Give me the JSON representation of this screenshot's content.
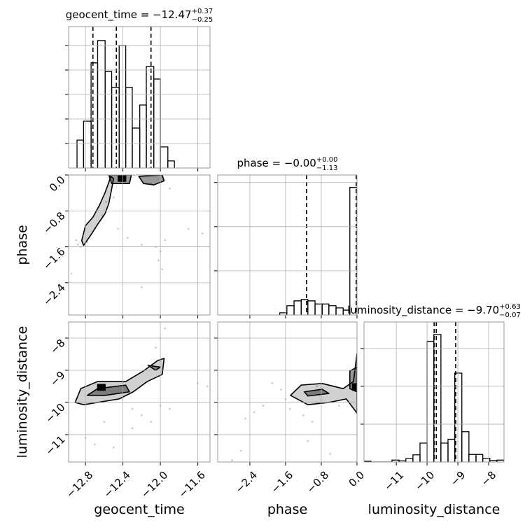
{
  "chart_data": [
    {
      "type": "histogram",
      "title": {
        "text": "geocent_time = −12.47",
        "plus": "+0.37",
        "minus": "−0.25"
      },
      "bins": [
        -12.89,
        -12.82,
        -12.74,
        -12.67,
        -12.59,
        -12.52,
        -12.44,
        -12.37,
        -12.3,
        -12.22,
        -12.15,
        -12.07,
        -12.0,
        -11.92,
        -11.85
      ],
      "values": [
        1.14,
        1.91,
        4.29,
        5.2,
        3.94,
        3.29,
        5.0,
        3.29,
        1.63,
        2.57,
        4.14,
        3.63,
        0.86,
        0.29
      ],
      "quantiles": [
        -12.72,
        -12.47,
        -12.1
      ],
      "xlim": [
        -12.98,
        -11.47
      ],
      "ylim": [
        0,
        5.77
      ],
      "xticks": [
        {
          "value": -12.8,
          "label": "−12.8"
        },
        {
          "value": -12.4,
          "label": "−12.4"
        },
        {
          "value": -12.0,
          "label": "−12.0"
        },
        {
          "value": -11.6,
          "label": "−11.6"
        }
      ],
      "yticks": [
        1,
        2,
        3,
        4,
        5
      ],
      "grid": true
    },
    {
      "type": "histogram",
      "title": {
        "text": "phase = −0.00",
        "plus": "+0.00",
        "minus": "−1.13"
      },
      "bins": [
        -1.73,
        -1.57,
        -1.41,
        -1.25,
        -1.1,
        -0.94,
        -0.78,
        -0.63,
        -0.47,
        -0.31,
        -0.16,
        0
      ],
      "values": [
        0.05,
        0.21,
        0.32,
        0.35,
        0.32,
        0.25,
        0.25,
        0.21,
        0.16,
        0.11,
        2.89
      ],
      "quantiles": [
        -1.13,
        0,
        0
      ],
      "xlim": [
        -3.12,
        0
      ],
      "ylim": [
        0,
        3.17
      ],
      "xticks": [
        {
          "value": -2.4,
          "label": "−2.4"
        },
        {
          "value": -1.6,
          "label": "−1.6"
        },
        {
          "value": -0.8,
          "label": "−0.8"
        },
        {
          "value": 0,
          "label": "0.0"
        }
      ],
      "yticks": [
        1,
        2,
        3
      ],
      "grid": true
    },
    {
      "type": "histogram",
      "title": {
        "text": "luminosity_distance = −9.70",
        "plus": "+0.63",
        "minus": "−0.07"
      },
      "x_label": "luminosity_distance",
      "bins": [
        -12.05,
        -11.82,
        -11.6,
        -11.37,
        -11.14,
        -10.91,
        -10.69,
        -10.46,
        -10.23,
        -10.0,
        -9.78,
        -9.55,
        -9.32,
        -9.1,
        -8.87,
        -8.64,
        -8.41,
        -8.19,
        -7.96,
        -7.73,
        -7.5
      ],
      "values": [
        0.02,
        0,
        0,
        0,
        0.05,
        0.03,
        0.09,
        0.19,
        0.5,
        3.19,
        3.37,
        0.5,
        0.6,
        2.35,
        0.8,
        0.2,
        0.2,
        0.1,
        0.04,
        0.05
      ],
      "quantiles": [
        -9.77,
        -9.7,
        -9.07
      ],
      "xlim": [
        -12.05,
        -7.5
      ],
      "ylim": [
        0,
        3.7
      ],
      "xticks": [
        {
          "value": -11,
          "label": "−11"
        },
        {
          "value": -10,
          "label": "−10"
        },
        {
          "value": -9,
          "label": "−9"
        },
        {
          "value": -8,
          "label": "−8"
        }
      ],
      "yticks": [
        1,
        2,
        3
      ],
      "grid": true
    },
    {
      "type": "scatter",
      "y_label": "phase",
      "x": [
        -12.9,
        -12.88,
        -12.85,
        -12.78,
        -12.7,
        -12.62,
        -12.58,
        -12.5,
        -12.45,
        -12.35,
        -12.2,
        -12.05,
        -12.0,
        -12.02,
        -11.98,
        -12.1,
        -11.9,
        -11.7,
        -11.55,
        -12.95,
        -12.2,
        -11.95
      ],
      "y": [
        -1.45,
        -1.55,
        -1.6,
        -1.5,
        -1.2,
        -0.9,
        -0.6,
        -0.5,
        -1.2,
        -1.4,
        -1.55,
        -1.6,
        -1.7,
        -1.9,
        -2.1,
        -0.2,
        -0.3,
        -1.2,
        -1.3,
        -2.2,
        -2.5,
        -1.45
      ],
      "contours": [
        {
          "x": [
            -12.84,
            -12.8,
            -12.72,
            -12.65,
            -12.59,
            -12.55,
            -12.53,
            -12.5,
            -12.52,
            -12.55,
            -12.59,
            -12.67,
            -12.74,
            -12.82
          ],
          "y": [
            -1.46,
            -1.13,
            -0.94,
            -0.67,
            -0.39,
            -0.16,
            -0.03,
            -0.08,
            -0.31,
            -0.63,
            -0.86,
            -1.1,
            -1.33,
            -1.57
          ]
        },
        {
          "x": [
            -12.23,
            -12.18,
            -12.07,
            -11.96,
            -11.98
          ],
          "y": [
            -0.03,
            -0.19,
            -0.22,
            -0.13,
            0
          ]
        },
        {
          "x": [
            -12.55,
            -12.52,
            -12.33,
            -12.31
          ],
          "y": [
            0,
            -0.19,
            -0.19,
            0
          ]
        },
        {
          "x": [
            -12.45,
            -12.45,
            -12.37,
            -12.37
          ],
          "y": [
            0,
            -0.14,
            -0.14,
            0
          ]
        }
      ],
      "xlim": [
        -12.98,
        -11.47
      ],
      "ylim": [
        -3.12,
        0
      ],
      "xticks": [
        {
          "value": -12.8,
          "label": "−12.8"
        },
        {
          "value": -12.4,
          "label": "−12.4"
        },
        {
          "value": -12.0,
          "label": "−12.0"
        },
        {
          "value": -11.6,
          "label": "−11.6"
        }
      ],
      "yticks": [
        {
          "value": -2.4,
          "label": "−2.4"
        },
        {
          "value": -1.6,
          "label": "−1.6"
        },
        {
          "value": -0.8,
          "label": "−0.8"
        },
        {
          "value": 0,
          "label": "0.0"
        }
      ],
      "grid": true
    },
    {
      "type": "scatter",
      "x_label": "geocent_time",
      "y_label": "luminosity_distance",
      "x": [
        -12.0,
        -11.95,
        -12.05,
        -12.3,
        -12.2,
        -12.1,
        -12.3,
        -12.6,
        -12.8,
        -12.7,
        -12.5,
        -11.6,
        -11.5,
        -12.9,
        -12.4,
        -12.0,
        -11.9
      ],
      "y": [
        -8.0,
        -7.7,
        -8.3,
        -10.2,
        -10.4,
        -10.6,
        -10.8,
        -10.6,
        -11.1,
        -11.3,
        -11.4,
        -9.4,
        -9.5,
        -9.9,
        -9.5,
        -10.1,
        -10.2
      ],
      "contours": [
        {
          "x": [
            -12.91,
            -12.85,
            -12.67,
            -12.37,
            -12.18,
            -12.03,
            -11.96,
            -11.98,
            -12.14,
            -12.29,
            -12.44,
            -12.67,
            -12.82
          ],
          "y": [
            -10.0,
            -9.57,
            -9.35,
            -9.35,
            -9.02,
            -8.7,
            -8.63,
            -9.13,
            -9.35,
            -9.67,
            -9.89,
            -10.0,
            -10.07
          ]
        },
        {
          "x": [
            -12.78,
            -12.67,
            -12.37,
            -12.33,
            -12.59
          ],
          "y": [
            -9.78,
            -9.57,
            -9.46,
            -9.67,
            -9.78
          ]
        },
        {
          "x": [
            -12.13,
            -12.0,
            -12.05
          ],
          "y": [
            -8.85,
            -8.9,
            -9.0
          ]
        },
        {
          "x": [
            -12.67,
            -12.67,
            -12.59,
            -12.59
          ],
          "y": [
            -9.44,
            -9.62,
            -9.62,
            -9.44
          ]
        }
      ],
      "xlim": [
        -12.98,
        -11.47
      ],
      "ylim": [
        -11.85,
        -7.5
      ],
      "xticks": [
        {
          "value": -12.8,
          "label": "−12.8"
        },
        {
          "value": -12.4,
          "label": "−12.4"
        },
        {
          "value": -12.0,
          "label": "−12.0"
        },
        {
          "value": -11.6,
          "label": "−11.6"
        }
      ],
      "yticks": [
        {
          "value": -11,
          "label": "−11"
        },
        {
          "value": -10,
          "label": "−10"
        },
        {
          "value": -9,
          "label": "−9"
        },
        {
          "value": -8,
          "label": "−8"
        }
      ],
      "grid": true
    },
    {
      "type": "scatter",
      "x_label": "phase",
      "x": [
        -1.6,
        -1.7,
        -1.9,
        -2.1,
        -2.3,
        -2.5,
        -1.2,
        -1.0,
        -1.5,
        -0.9,
        -0.4,
        -1.1,
        -0.6,
        -2.6,
        -2.8,
        -0.9
      ],
      "y": [
        -9.9,
        -9.6,
        -9.4,
        -10.1,
        -10.3,
        -10.5,
        -10.4,
        -10.6,
        -10.2,
        -10.0,
        -10.1,
        -11.2,
        -11.6,
        -11.5,
        -11.8,
        -9.5
      ],
      "contours": [
        {
          "x": [
            -1.49,
            -1.25,
            -0.78,
            -0.31,
            -0.08,
            0,
            0,
            -0.24,
            -0.63,
            -1.1
          ],
          "y": [
            -9.78,
            -9.46,
            -9.41,
            -9.57,
            -9.35,
            -8.48,
            -10.33,
            -9.89,
            -10.0,
            -10.07
          ]
        },
        {
          "x": [
            -1.18,
            -0.78,
            -0.63,
            -1.1
          ],
          "y": [
            -9.67,
            -9.59,
            -9.72,
            -9.8
          ]
        },
        {
          "x": [
            -0.16,
            0,
            0,
            -0.16
          ],
          "y": [
            -9.02,
            -8.91,
            -9.67,
            -9.57
          ]
        },
        {
          "x": [
            -0.1,
            0,
            0,
            -0.1
          ],
          "y": [
            -9.42,
            -9.42,
            -9.62,
            -9.62
          ]
        }
      ],
      "xlim": [
        -3.12,
        0
      ],
      "ylim": [
        -11.85,
        -7.5
      ],
      "xticks": [
        {
          "value": -2.4,
          "label": "−2.4"
        },
        {
          "value": -1.6,
          "label": "−1.6"
        },
        {
          "value": -0.8,
          "label": "−0.8"
        },
        {
          "value": 0,
          "label": "0.0"
        }
      ],
      "yticks": [
        {
          "value": -11,
          "label": "−11"
        },
        {
          "value": -10,
          "label": "−10"
        },
        {
          "value": -9,
          "label": "−9"
        },
        {
          "value": -8,
          "label": "−8"
        }
      ],
      "grid": true
    }
  ]
}
